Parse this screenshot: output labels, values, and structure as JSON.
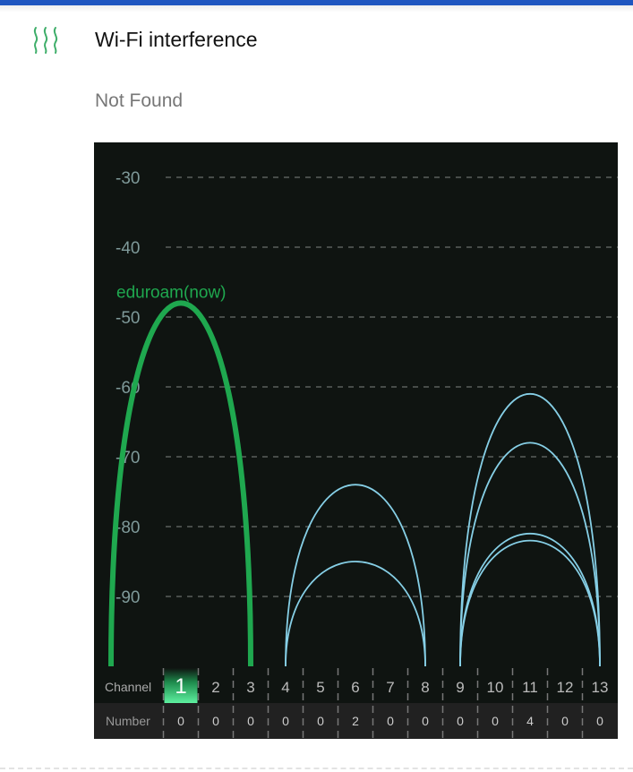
{
  "header": {
    "title": "Wi-Fi interference",
    "status": "Not Found",
    "icon": "wifi-interference-waves-icon"
  },
  "colors": {
    "accent": "#1fa84f",
    "other_networks": "#86cfe6",
    "topbar": "#1f56c0",
    "chart_bg": "#0f1411"
  },
  "chart_data": {
    "type": "line",
    "ylabel": "",
    "xlabel": "",
    "y_ticks": [
      "-30",
      "-40",
      "-50",
      "-60",
      "-70",
      "-80",
      "-90"
    ],
    "ylim": [
      -100,
      -25
    ],
    "grid": true,
    "row_labels": {
      "channel": "Channel",
      "number": "Number"
    },
    "channels": [
      "1",
      "2",
      "3",
      "4",
      "5",
      "6",
      "7",
      "8",
      "9",
      "10",
      "11",
      "12",
      "13"
    ],
    "selected_channel": "1",
    "numbers": [
      "0",
      "0",
      "0",
      "0",
      "0",
      "2",
      "0",
      "0",
      "0",
      "0",
      "4",
      "0",
      "0"
    ],
    "networks": [
      {
        "name": "eduroam(now)",
        "channel": 1,
        "signal": -48,
        "current": true
      },
      {
        "channel": 6,
        "signal": -74
      },
      {
        "channel": 6,
        "signal": -85
      },
      {
        "channel": 11,
        "signal": -61
      },
      {
        "channel": 11,
        "signal": -68
      },
      {
        "channel": 11,
        "signal": -81
      },
      {
        "channel": 11,
        "signal": -82
      }
    ]
  }
}
